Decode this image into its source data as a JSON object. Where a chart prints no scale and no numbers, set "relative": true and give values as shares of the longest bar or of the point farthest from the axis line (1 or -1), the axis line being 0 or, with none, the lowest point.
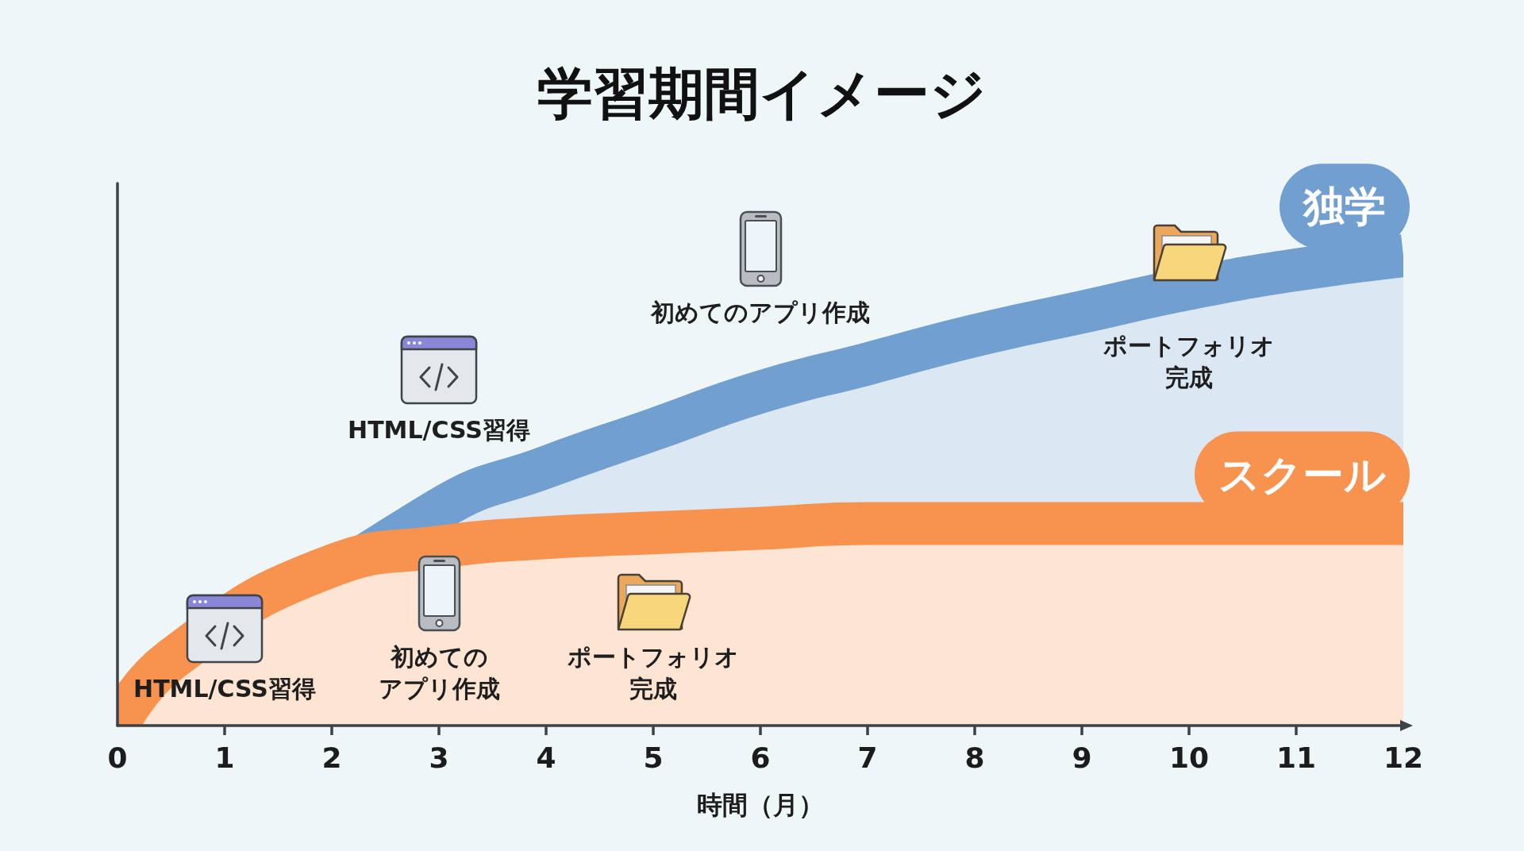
{
  "chart_data": {
    "type": "area",
    "title": "学習期間イメージ",
    "xlabel": "時間（月）",
    "xlim": [
      0,
      12
    ],
    "xticks": [
      0,
      1,
      2,
      3,
      4,
      5,
      6,
      7,
      8,
      9,
      10,
      11,
      12
    ],
    "relative": true,
    "series": [
      {
        "name": "独学",
        "color": "#709fd0",
        "x": [
          0,
          3,
          4,
          5,
          6,
          7,
          8,
          9,
          10,
          11,
          12
        ],
        "values": [
          0,
          0.46,
          0.55,
          0.63,
          0.71,
          0.77,
          0.83,
          0.88,
          0.93,
          0.97,
          1
        ]
      },
      {
        "name": "スクール",
        "color": "#f7924f",
        "x": [
          0,
          0.5,
          2,
          3,
          4,
          5,
          6,
          7,
          8,
          9,
          10,
          11,
          12
        ],
        "values": [
          0,
          0.14,
          0.34,
          0.38,
          0.4,
          0.41,
          0.42,
          0.43,
          0.43,
          0.43,
          0.43,
          0.43,
          0.43
        ]
      }
    ],
    "annotations": [
      "HTML/CSS習得",
      "初めてのアプリ作成",
      "ポートフォリオ完成",
      {
        "text": "HTML/CSS習得",
        "x": 3,
        "y": 0.46
      },
      {
        "text": "初めてのアプリ作成",
        "x": 6,
        "y": 0.71
      },
      {
        "text": "ポートフォリオ完成",
        "x": 10,
        "y": 0.93
      }
    ],
    "grid": false,
    "marker": "none"
  }
}
